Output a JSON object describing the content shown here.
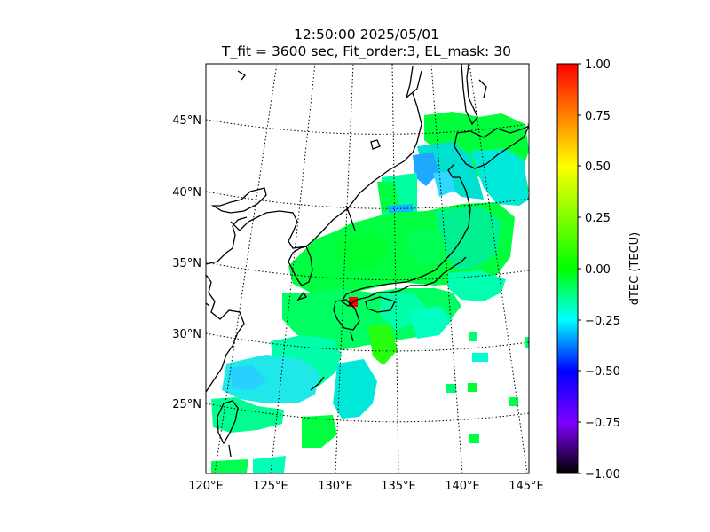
{
  "title_line1": "12:50:00 2025/05/01",
  "title_line2": "T_fit = 3600 sec, Fit_order:3, EL_mask: 30",
  "lat_labels": [
    "45°N",
    "40°N",
    "35°N",
    "30°N",
    "25°N"
  ],
  "lon_labels": [
    "120°E",
    "125°E",
    "130°E",
    "135°E",
    "140°E",
    "145°E"
  ],
  "colorbar": {
    "label": "dTEC (TECU)",
    "ticks": [
      "1.00",
      "0.75",
      "0.50",
      "0.25",
      "0.00",
      "−0.25",
      "−0.50",
      "−0.75",
      "−1.00"
    ],
    "range": [
      -1.0,
      1.0
    ],
    "colors": [
      "#000000",
      "#7f00ff",
      "#0000ff",
      "#00ffff",
      "#00ff00",
      "#ffff00",
      "#ff0000"
    ]
  },
  "map": {
    "projection": "conic",
    "lat_range": [
      20,
      49
    ],
    "lon_range": [
      120,
      145
    ],
    "gridlines": "dotted",
    "coastline_color": "#000000",
    "marker_color": "#ff0000"
  }
}
